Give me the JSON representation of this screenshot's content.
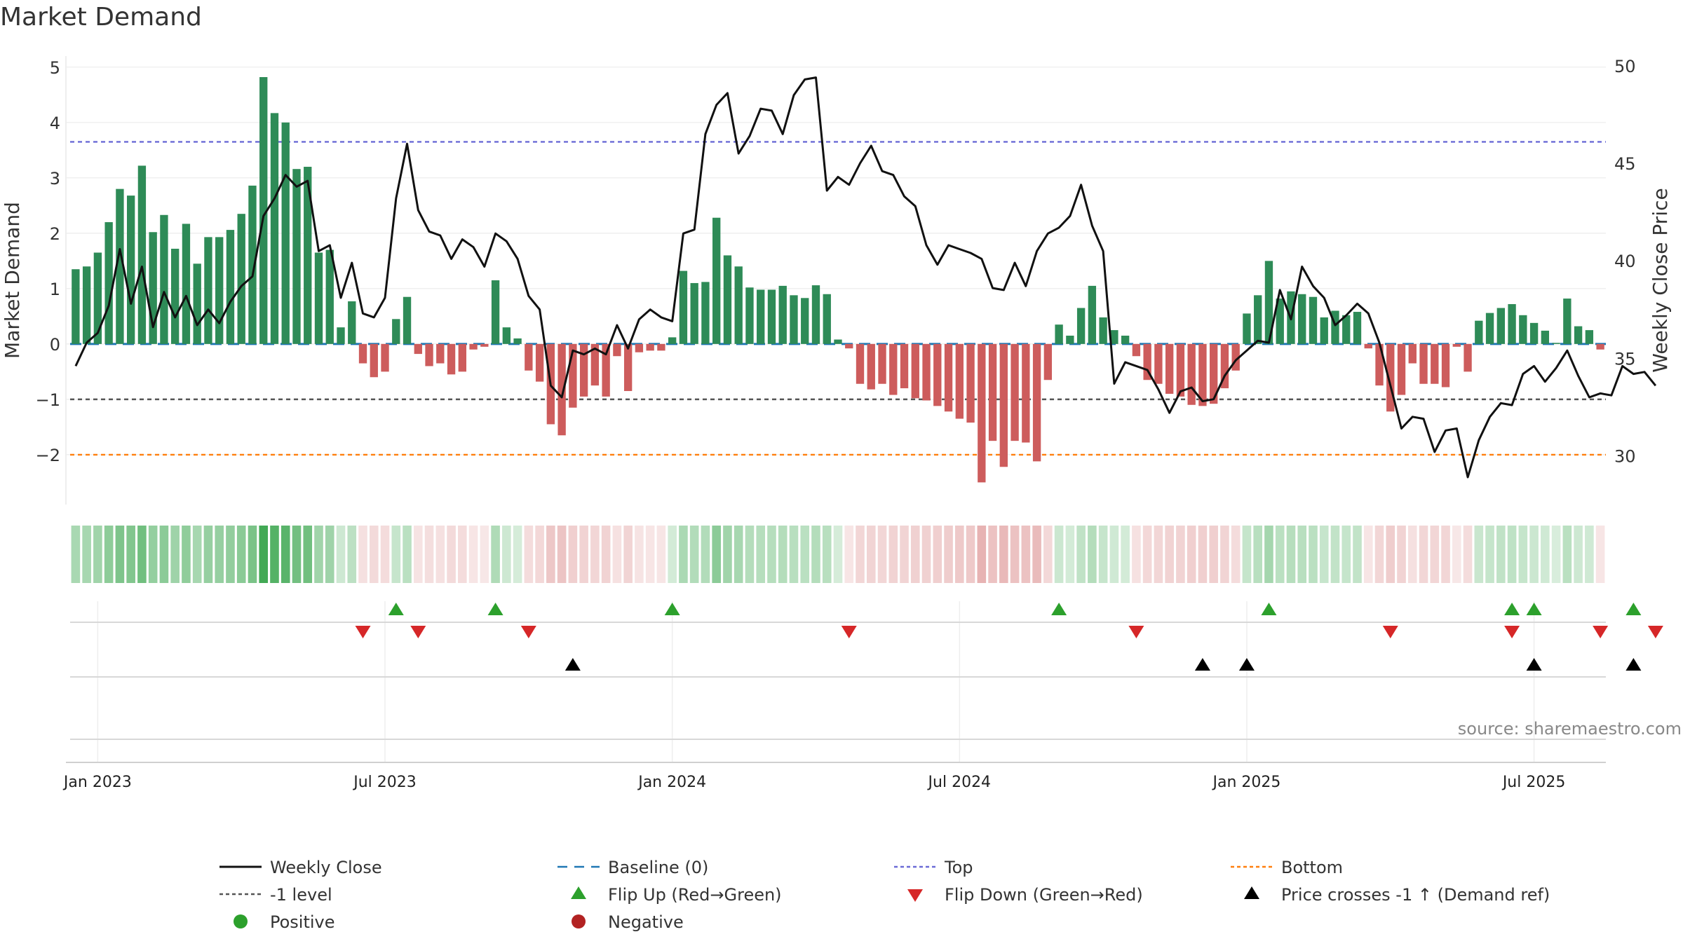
{
  "chart_data": {
    "type": "bar+line",
    "title": "Market Demand",
    "ylabel_left": "Market Demand",
    "ylabel_right": "Weekly Close Price",
    "source": "source: sharemaestro.com",
    "ylim_left": [
      -2.9,
      5.2
    ],
    "ylim_right": [
      27.5,
      50.5
    ],
    "yticks_left": [
      {
        "v": 5,
        "l": "5"
      },
      {
        "v": 4,
        "l": "4"
      },
      {
        "v": 3,
        "l": "3"
      },
      {
        "v": 2,
        "l": "2"
      },
      {
        "v": 1,
        "l": "1"
      },
      {
        "v": 0,
        "l": "0"
      },
      {
        "v": -1,
        "l": "−1"
      },
      {
        "v": -2,
        "l": "−2"
      }
    ],
    "yticks_right": [
      {
        "v": 50,
        "l": "50"
      },
      {
        "v": 45,
        "l": "45"
      },
      {
        "v": 40,
        "l": "40"
      },
      {
        "v": 35,
        "l": "35"
      },
      {
        "v": 30,
        "l": "30"
      }
    ],
    "xticks": [
      {
        "i": 2,
        "l": "Jan 2023"
      },
      {
        "i": 28,
        "l": "Jul 2023"
      },
      {
        "i": 54,
        "l": "Jan 2024"
      },
      {
        "i": 80,
        "l": "Jul 2024"
      },
      {
        "i": 106,
        "l": "Jan 2025"
      },
      {
        "i": 132,
        "l": "Jul 2025"
      }
    ],
    "reference_lines": {
      "baseline": 0,
      "top": 3.65,
      "minus_one": -1,
      "bottom": -2
    },
    "demand": [
      1.35,
      1.4,
      1.65,
      2.2,
      2.8,
      2.68,
      3.22,
      2.02,
      2.33,
      1.72,
      2.17,
      1.45,
      1.93,
      1.93,
      2.06,
      2.35,
      2.86,
      4.82,
      4.17,
      4.0,
      3.16,
      3.2,
      1.65,
      1.7,
      0.3,
      0.77,
      -0.35,
      -0.6,
      -0.5,
      0.45,
      0.85,
      -0.18,
      -0.4,
      -0.35,
      -0.55,
      -0.5,
      -0.1,
      -0.05,
      1.15,
      0.3,
      0.1,
      -0.48,
      -0.68,
      -1.45,
      -1.65,
      -1.15,
      -0.95,
      -0.75,
      -0.95,
      -0.22,
      -0.85,
      -0.15,
      -0.12,
      -0.12,
      0.12,
      1.32,
      1.1,
      1.12,
      2.28,
      1.6,
      1.4,
      1.02,
      0.98,
      0.98,
      1.05,
      0.88,
      0.83,
      1.06,
      0.9,
      0.08,
      -0.08,
      -0.72,
      -0.82,
      -0.72,
      -0.92,
      -0.8,
      -0.98,
      -1.02,
      -1.12,
      -1.22,
      -1.35,
      -1.42,
      -2.5,
      -1.75,
      -2.22,
      -1.75,
      -1.78,
      -2.12,
      -0.65,
      0.35,
      0.15,
      0.65,
      1.05,
      0.48,
      0.25,
      0.15,
      -0.22,
      -0.65,
      -0.72,
      -0.9,
      -0.95,
      -1.1,
      -1.12,
      -1.08,
      -0.8,
      -0.48,
      0.55,
      0.88,
      1.5,
      0.82,
      0.95,
      0.9,
      0.85,
      0.48,
      0.6,
      0.52,
      0.58,
      -0.08,
      -0.75,
      -1.22,
      -0.92,
      -0.35,
      -0.72,
      -0.72,
      -0.78,
      -0.05,
      -0.5,
      0.42,
      0.56,
      0.65,
      0.72,
      0.52,
      0.38,
      0.24,
      0.02,
      0.82,
      0.32,
      0.25,
      -0.1
    ],
    "close": [
      34.6,
      35.8,
      36.3,
      37.7,
      40.6,
      37.8,
      39.7,
      36.6,
      38.4,
      37.1,
      38.2,
      36.7,
      37.5,
      36.8,
      37.9,
      38.7,
      39.2,
      42.3,
      43.2,
      44.4,
      43.8,
      44.1,
      40.5,
      40.8,
      38.1,
      39.9,
      37.3,
      37.1,
      38.1,
      43.2,
      46.0,
      42.6,
      41.5,
      41.3,
      40.1,
      41.1,
      40.7,
      39.7,
      41.4,
      41.0,
      40.1,
      38.2,
      37.5,
      33.6,
      33.0,
      35.4,
      35.2,
      35.5,
      35.2,
      36.7,
      35.5,
      37.0,
      37.5,
      37.1,
      36.9,
      41.4,
      41.6,
      46.5,
      48.0,
      48.6,
      45.5,
      46.4,
      47.8,
      47.7,
      46.5,
      48.5,
      49.3,
      49.4,
      43.6,
      44.3,
      43.9,
      45.0,
      45.9,
      44.6,
      44.4,
      43.3,
      42.8,
      40.8,
      39.8,
      40.8,
      40.6,
      40.4,
      40.1,
      38.6,
      38.5,
      39.9,
      38.7,
      40.5,
      41.4,
      41.7,
      42.3,
      43.9,
      41.8,
      40.5,
      33.7,
      34.8,
      34.6,
      34.4,
      33.4,
      32.2,
      33.3,
      33.5,
      32.8,
      32.9,
      34.1,
      34.9,
      35.4,
      35.9,
      35.8,
      38.5,
      37.0,
      39.7,
      38.7,
      38.1,
      36.7,
      37.2,
      37.8,
      37.3,
      35.8,
      33.6,
      31.4,
      32.0,
      31.9,
      30.2,
      31.3,
      31.4,
      28.9,
      30.8,
      32.0,
      32.7,
      32.6,
      34.2,
      34.6,
      33.8,
      34.5,
      35.4,
      34.1,
      33.0,
      33.2,
      33.1,
      34.6,
      34.2,
      34.3,
      33.6
    ],
    "flip_up_idx": [
      29,
      38,
      54,
      89,
      108,
      130,
      132,
      141
    ],
    "flip_down_idx": [
      26,
      31,
      41,
      70,
      96,
      119,
      130,
      138,
      143
    ],
    "price_cross_idx": [
      45,
      102,
      106,
      132,
      141
    ],
    "legend": [
      {
        "key": "close",
        "label": "Weekly Close",
        "color": "#111111"
      },
      {
        "key": "baseline",
        "label": "Baseline (0)",
        "color": "#1f77b4"
      },
      {
        "key": "top",
        "label": "Top",
        "color": "#6b6bd6"
      },
      {
        "key": "bottom",
        "label": "Bottom",
        "color": "#ff7f0e"
      },
      {
        "key": "minus1",
        "label": "-1 level",
        "color": "#555555"
      },
      {
        "key": "flipup",
        "label": "Flip Up (Red→Green)",
        "color": "#2ca02c"
      },
      {
        "key": "flipdown",
        "label": "Flip Down (Green→Red)",
        "color": "#d62728"
      },
      {
        "key": "pricecross",
        "label": "Price crosses -1 ↑ (Demand ref)",
        "color": "#000000"
      },
      {
        "key": "positive",
        "label": "Positive",
        "color": "#2ca02c"
      },
      {
        "key": "negative",
        "label": "Negative",
        "color": "#b22222"
      }
    ],
    "colors": {
      "positive_bar": "#2e8b57",
      "negative_bar": "#cd5c5c",
      "line": "#111111"
    }
  }
}
